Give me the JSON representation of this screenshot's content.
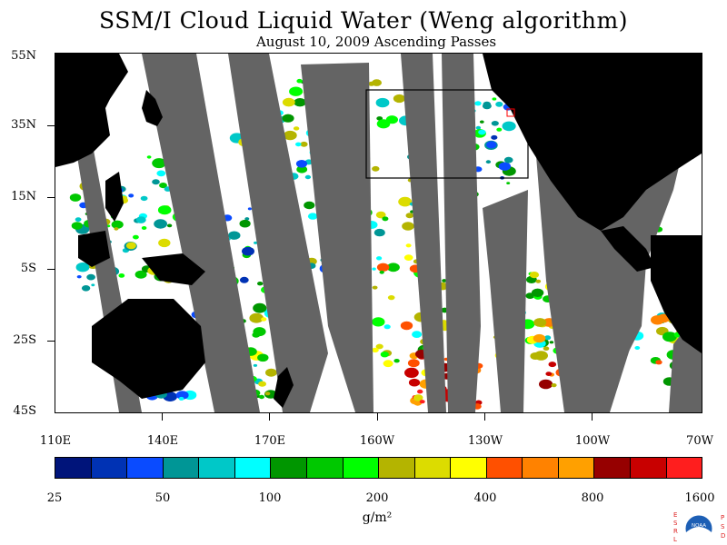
{
  "title": "SSM/I Cloud Liquid Water (Weng algorithm)",
  "subtitle": "August 10, 2009  Ascending Passes",
  "units": "g/m²",
  "lat_labels": [
    "55N",
    "35N",
    "15N",
    "5S",
    "25S",
    "45S"
  ],
  "lon_labels": [
    "110E",
    "140E",
    "170E",
    "160W",
    "130W",
    "100W",
    "70W"
  ],
  "colorbar": {
    "tick_labels": [
      "25",
      "50",
      "100",
      "200",
      "400",
      "800",
      "1600"
    ],
    "colors": [
      "#00147a",
      "#0032b4",
      "#0a4bff",
      "#009696",
      "#00c8c8",
      "#00ffff",
      "#009600",
      "#00c800",
      "#00ff00",
      "#b4b400",
      "#dcdc00",
      "#ffff00",
      "#ff5000",
      "#ff8200",
      "#ffa000",
      "#960000",
      "#c80000",
      "#ff1e1e"
    ]
  },
  "map_colors": {
    "land": "#000000",
    "no_data": "#646464",
    "clear": "#ffffff",
    "box": "#000000",
    "marker": "#ff0000"
  },
  "logo": {
    "left_letters": "ESRL",
    "right_letters": "PSD",
    "text": "NOAA"
  }
}
